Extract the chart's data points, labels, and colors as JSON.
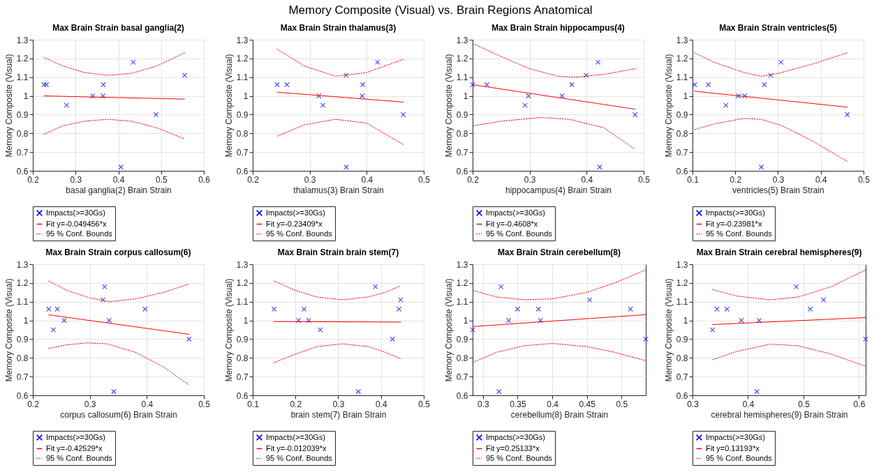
{
  "chart_data": [
    {
      "type": "scatter",
      "title": "Max Brain Strain basal ganglia(2)",
      "xlabel": "basal ganglia(2) Brain Strain",
      "ylabel": "Memory Composite (Visual)",
      "annotations": [
        "Memory Composite (Visual) vs. Brain Regions Anatomical"
      ],
      "xlim": [
        0.2,
        0.6
      ],
      "xticks": [
        0.2,
        0.3,
        0.4,
        0.5,
        0.6
      ],
      "ylim": [
        0.6,
        1.3
      ],
      "yticks": [
        0.6,
        0.7,
        0.8,
        0.9,
        1,
        1.1,
        1.2,
        1.3
      ],
      "grid": true,
      "legend": "bottom",
      "series": [
        {
          "type": "scatter",
          "name": "Impacts(>=30Gs)",
          "color": "#0000ff",
          "marker": "cross",
          "x": [
            0.226,
            0.232,
            0.279,
            0.34,
            0.364,
            0.365,
            0.435,
            0.406,
            0.488,
            0.555
          ],
          "values": [
            1.06,
            1.06,
            0.95,
            1.0,
            1.0,
            1.06,
            1.18,
            0.62,
            0.9,
            1.11
          ]
        },
        {
          "type": "line",
          "name": "Fit y=-0.049456*x",
          "color": "#ff0000",
          "line_style": "solid",
          "x": [
            0.226,
            0.555
          ],
          "values": [
            1.0,
            0.983
          ]
        },
        {
          "type": "line",
          "name": "95 % Conf. Bounds",
          "color": "#ff0000",
          "line_style": "dotted",
          "x": [
            0.226,
            0.27,
            0.32,
            0.375,
            0.43,
            0.49,
            0.555
          ],
          "values": [
            1.205,
            1.16,
            1.125,
            1.11,
            1.12,
            1.16,
            1.23
          ]
        },
        {
          "type": "line",
          "color": "#ff0000",
          "line_style": "dotted",
          "x": [
            0.226,
            0.27,
            0.32,
            0.375,
            0.43,
            0.49,
            0.555
          ],
          "values": [
            0.795,
            0.84,
            0.865,
            0.875,
            0.865,
            0.83,
            0.77
          ]
        }
      ]
    },
    {
      "type": "scatter",
      "title": "Max Brain Strain thalamus(3)",
      "xlabel": "thalamus(3) Brain Strain",
      "ylabel": "Memory Composite (Visual)",
      "xlim": [
        0.2,
        0.5
      ],
      "xticks": [
        0.2,
        0.3,
        0.4,
        0.5
      ],
      "ylim": [
        0.6,
        1.3
      ],
      "yticks": [
        0.6,
        0.7,
        0.8,
        0.9,
        1,
        1.1,
        1.2,
        1.3
      ],
      "grid": true,
      "legend": "bottom",
      "series": [
        {
          "type": "scatter",
          "name": "Impacts(>=30Gs)",
          "color": "#0000ff",
          "marker": "cross",
          "x": [
            0.243,
            0.26,
            0.316,
            0.323,
            0.364,
            0.364,
            0.393,
            0.392,
            0.419,
            0.464
          ],
          "values": [
            1.06,
            1.06,
            1.0,
            0.95,
            1.11,
            0.62,
            1.06,
            1.0,
            1.18,
            0.9
          ]
        },
        {
          "type": "line",
          "name": "Fit y=-0.23409*x",
          "color": "#ff0000",
          "line_style": "solid",
          "x": [
            0.243,
            0.464
          ],
          "values": [
            1.02,
            0.967
          ]
        },
        {
          "type": "line",
          "name": "95 % Conf. Bounds",
          "color": "#ff0000",
          "line_style": "dotted",
          "x": [
            0.243,
            0.29,
            0.345,
            0.4,
            0.464
          ],
          "values": [
            1.25,
            1.16,
            1.105,
            1.125,
            1.195
          ]
        },
        {
          "type": "line",
          "color": "#ff0000",
          "line_style": "dotted",
          "x": [
            0.243,
            0.29,
            0.345,
            0.4,
            0.464
          ],
          "values": [
            0.785,
            0.845,
            0.875,
            0.855,
            0.74
          ]
        }
      ]
    },
    {
      "type": "scatter",
      "title": "Max Brain Strain hippocampus(4)",
      "xlabel": "hippocampus(4) Brain Strain",
      "ylabel": "Memory Composite (Visual)",
      "xlim": [
        0.2,
        0.5
      ],
      "xticks": [
        0.2,
        0.3,
        0.4,
        0.5
      ],
      "ylim": [
        0.6,
        1.3
      ],
      "yticks": [
        0.6,
        0.7,
        0.8,
        0.9,
        1,
        1.1,
        1.2,
        1.3
      ],
      "grid": true,
      "legend": "bottom",
      "series": [
        {
          "type": "scatter",
          "name": "Impacts(>=30Gs)",
          "color": "#0000ff",
          "marker": "cross",
          "x": [
            0.2,
            0.225,
            0.292,
            0.298,
            0.357,
            0.374,
            0.399,
            0.42,
            0.423,
            0.485
          ],
          "values": [
            1.06,
            1.06,
            0.95,
            1.0,
            1.0,
            1.06,
            1.11,
            1.18,
            0.62,
            0.9
          ]
        },
        {
          "type": "line",
          "name": "Fit y=-0.4608*x",
          "color": "#ff0000",
          "line_style": "solid",
          "x": [
            0.2,
            0.485
          ],
          "values": [
            1.06,
            0.929
          ]
        },
        {
          "type": "line",
          "name": "95 % Conf. Bounds",
          "color": "#ff0000",
          "line_style": "dotted",
          "x": [
            0.2,
            0.25,
            0.3,
            0.35,
            0.38,
            0.43,
            0.485
          ],
          "values": [
            1.28,
            1.21,
            1.145,
            1.105,
            1.1,
            1.115,
            1.145
          ]
        },
        {
          "type": "line",
          "color": "#ff0000",
          "line_style": "dotted",
          "x": [
            0.2,
            0.25,
            0.32,
            0.37,
            0.43,
            0.485
          ],
          "values": [
            0.84,
            0.865,
            0.885,
            0.875,
            0.83,
            0.715
          ]
        }
      ]
    },
    {
      "type": "scatter",
      "title": "Max Brain Strain ventricles(5)",
      "xlabel": "ventricles(5) Brain Strain",
      "ylabel": "Memory Composite (Visual)",
      "xlim": [
        0.1,
        0.5
      ],
      "xticks": [
        0.1,
        0.2,
        0.3,
        0.4,
        0.5
      ],
      "ylim": [
        0.6,
        1.3
      ],
      "yticks": [
        0.6,
        0.7,
        0.8,
        0.9,
        1,
        1.1,
        1.2,
        1.3
      ],
      "grid": true,
      "legend": "bottom",
      "series": [
        {
          "type": "scatter",
          "name": "Impacts(>=30Gs)",
          "color": "#0000ff",
          "marker": "cross",
          "x": [
            0.105,
            0.137,
            0.178,
            0.207,
            0.222,
            0.268,
            0.283,
            0.307,
            0.261,
            0.462
          ],
          "values": [
            1.06,
            1.06,
            0.95,
            1.0,
            1.0,
            1.06,
            1.11,
            1.18,
            0.62,
            0.9
          ]
        },
        {
          "type": "line",
          "name": "Fit y=-0.23981*x",
          "color": "#ff0000",
          "line_style": "solid",
          "x": [
            0.105,
            0.462
          ],
          "values": [
            1.025,
            0.94
          ]
        },
        {
          "type": "line",
          "name": "95 % Conf. Bounds",
          "color": "#ff0000",
          "line_style": "dotted",
          "x": [
            0.105,
            0.15,
            0.22,
            0.26,
            0.3,
            0.38,
            0.462
          ],
          "values": [
            1.23,
            1.18,
            1.125,
            1.105,
            1.12,
            1.17,
            1.23
          ]
        },
        {
          "type": "line",
          "color": "#ff0000",
          "line_style": "dotted",
          "x": [
            0.105,
            0.15,
            0.22,
            0.26,
            0.31,
            0.38,
            0.462
          ],
          "values": [
            0.82,
            0.85,
            0.88,
            0.875,
            0.84,
            0.76,
            0.65
          ]
        }
      ]
    },
    {
      "type": "scatter",
      "title": "Max Brain Strain corpus callosum(6)",
      "xlabel": "corpus callosum(6) Brain Strain",
      "ylabel": "Memory Composite (Visual)",
      "xlim": [
        0.2,
        0.5
      ],
      "xticks": [
        0.2,
        0.3,
        0.4,
        0.5
      ],
      "ylim": [
        0.6,
        1.3
      ],
      "yticks": [
        0.6,
        0.7,
        0.8,
        0.9,
        1,
        1.1,
        1.2,
        1.3
      ],
      "grid": true,
      "legend": "bottom",
      "series": [
        {
          "type": "scatter",
          "name": "Impacts(>=30Gs)",
          "color": "#0000ff",
          "marker": "cross",
          "x": [
            0.228,
            0.236,
            0.243,
            0.255,
            0.323,
            0.326,
            0.334,
            0.342,
            0.397,
            0.474
          ],
          "values": [
            1.06,
            0.95,
            1.06,
            1.0,
            1.11,
            1.18,
            1.0,
            0.62,
            1.06,
            0.9
          ]
        },
        {
          "type": "line",
          "name": "Fit y=-0.42529*x",
          "color": "#ff0000",
          "line_style": "solid",
          "x": [
            0.228,
            0.474
          ],
          "values": [
            1.03,
            0.926
          ]
        },
        {
          "type": "line",
          "name": "95 % Conf. Bounds",
          "color": "#ff0000",
          "line_style": "dotted",
          "x": [
            0.228,
            0.26,
            0.3,
            0.335,
            0.38,
            0.43,
            0.474
          ],
          "values": [
            1.21,
            1.16,
            1.12,
            1.1,
            1.115,
            1.15,
            1.195
          ]
        },
        {
          "type": "line",
          "color": "#ff0000",
          "line_style": "dotted",
          "x": [
            0.228,
            0.26,
            0.295,
            0.33,
            0.38,
            0.43,
            0.474
          ],
          "values": [
            0.85,
            0.87,
            0.88,
            0.875,
            0.83,
            0.75,
            0.655
          ]
        }
      ]
    },
    {
      "type": "scatter",
      "title": "Max Brain Strain brain stem(7)",
      "xlabel": "brain stem(7) Brain Strain",
      "ylabel": "Memory Composite (Visual)",
      "xlim": [
        0.1,
        0.5
      ],
      "xticks": [
        0.1,
        0.2,
        0.3,
        0.4,
        0.5
      ],
      "ylim": [
        0.6,
        1.3
      ],
      "yticks": [
        0.6,
        0.7,
        0.8,
        0.9,
        1,
        1.1,
        1.2,
        1.3
      ],
      "grid": true,
      "legend": "bottom",
      "series": [
        {
          "type": "scatter",
          "name": "Impacts(>=30Gs)",
          "color": "#0000ff",
          "marker": "cross",
          "x": [
            0.15,
            0.207,
            0.22,
            0.231,
            0.258,
            0.347,
            0.387,
            0.427,
            0.442,
            0.446
          ],
          "values": [
            1.06,
            1.0,
            1.06,
            1.0,
            0.95,
            0.62,
            1.18,
            0.9,
            1.06,
            1.11
          ]
        },
        {
          "type": "line",
          "name": "Fit y=-0.012039*x",
          "color": "#ff0000",
          "line_style": "solid",
          "x": [
            0.15,
            0.446
          ],
          "values": [
            0.994,
            0.991
          ]
        },
        {
          "type": "line",
          "name": "95 % Conf. Bounds",
          "color": "#ff0000",
          "line_style": "dotted",
          "x": [
            0.15,
            0.2,
            0.25,
            0.31,
            0.37,
            0.41,
            0.446
          ],
          "values": [
            1.21,
            1.16,
            1.125,
            1.11,
            1.125,
            1.15,
            1.185
          ]
        },
        {
          "type": "line",
          "color": "#ff0000",
          "line_style": "dotted",
          "x": [
            0.15,
            0.2,
            0.25,
            0.31,
            0.37,
            0.41,
            0.446
          ],
          "values": [
            0.775,
            0.82,
            0.86,
            0.875,
            0.86,
            0.83,
            0.795
          ]
        }
      ]
    },
    {
      "type": "scatter",
      "title": "Max Brain Strain cerebellum(8)",
      "xlabel": "cerebellum(8) Brain Strain",
      "ylabel": "Memory Composite (Visual)",
      "xlim": [
        0.285,
        0.535
      ],
      "xticks": [
        0.3,
        0.35,
        0.4,
        0.45,
        0.5
      ],
      "ylim": [
        0.6,
        1.3
      ],
      "yticks": [
        0.6,
        0.7,
        0.8,
        0.9,
        1,
        1.1,
        1.2,
        1.3
      ],
      "grid": true,
      "legend": "bottom",
      "series": [
        {
          "type": "scatter",
          "name": "Impacts(>=30Gs)",
          "color": "#0000ff",
          "marker": "cross",
          "x": [
            0.285,
            0.326,
            0.323,
            0.337,
            0.35,
            0.38,
            0.383,
            0.454,
            0.513,
            0.535
          ],
          "values": [
            0.95,
            1.18,
            0.62,
            1.0,
            1.06,
            1.06,
            1.0,
            1.11,
            1.06,
            0.9
          ]
        },
        {
          "type": "line",
          "name": "Fit y=0.25133*x",
          "color": "#ff0000",
          "line_style": "solid",
          "x": [
            0.285,
            0.535
          ],
          "values": [
            0.967,
            1.031
          ]
        },
        {
          "type": "line",
          "name": "95 % Conf. Bounds",
          "color": "#ff0000",
          "line_style": "dotted",
          "x": [
            0.285,
            0.32,
            0.36,
            0.4,
            0.45,
            0.49,
            0.535
          ],
          "values": [
            1.16,
            1.125,
            1.11,
            1.115,
            1.15,
            1.2,
            1.27
          ]
        },
        {
          "type": "line",
          "color": "#ff0000",
          "line_style": "dotted",
          "x": [
            0.285,
            0.32,
            0.36,
            0.4,
            0.45,
            0.49,
            0.535
          ],
          "values": [
            0.775,
            0.83,
            0.865,
            0.877,
            0.86,
            0.83,
            0.785
          ]
        }
      ]
    },
    {
      "type": "scatter",
      "title": "Max Brain Strain cerebral hemispheres(9)",
      "xlabel": "cerebral hemispheres(9) Brain Strain",
      "ylabel": "Memory Composite (Visual)",
      "xlim": [
        0.3,
        0.612
      ],
      "xticks": [
        0.3,
        0.4,
        0.5,
        0.6
      ],
      "ylim": [
        0.6,
        1.3
      ],
      "yticks": [
        0.6,
        0.7,
        0.8,
        0.9,
        1,
        1.1,
        1.2,
        1.3
      ],
      "grid": true,
      "legend": "bottom",
      "series": [
        {
          "type": "scatter",
          "name": "Impacts(>=30Gs)",
          "color": "#0000ff",
          "marker": "cross",
          "x": [
            0.336,
            0.344,
            0.362,
            0.388,
            0.42,
            0.416,
            0.487,
            0.512,
            0.536,
            0.612
          ],
          "values": [
            0.95,
            1.06,
            1.06,
            1.0,
            1.0,
            0.62,
            1.18,
            1.06,
            1.11,
            0.9
          ]
        },
        {
          "type": "line",
          "name": "Fit y=0.13193*x",
          "color": "#ff0000",
          "line_style": "solid",
          "x": [
            0.336,
            0.612
          ],
          "values": [
            0.978,
            1.015
          ]
        },
        {
          "type": "line",
          "name": "95 % Conf. Bounds",
          "color": "#ff0000",
          "line_style": "dotted",
          "x": [
            0.336,
            0.38,
            0.44,
            0.49,
            0.55,
            0.612
          ],
          "values": [
            1.165,
            1.13,
            1.11,
            1.125,
            1.18,
            1.27
          ]
        },
        {
          "type": "line",
          "color": "#ff0000",
          "line_style": "dotted",
          "x": [
            0.336,
            0.38,
            0.44,
            0.49,
            0.55,
            0.612
          ],
          "values": [
            0.79,
            0.835,
            0.873,
            0.865,
            0.82,
            0.755
          ]
        }
      ]
    }
  ]
}
